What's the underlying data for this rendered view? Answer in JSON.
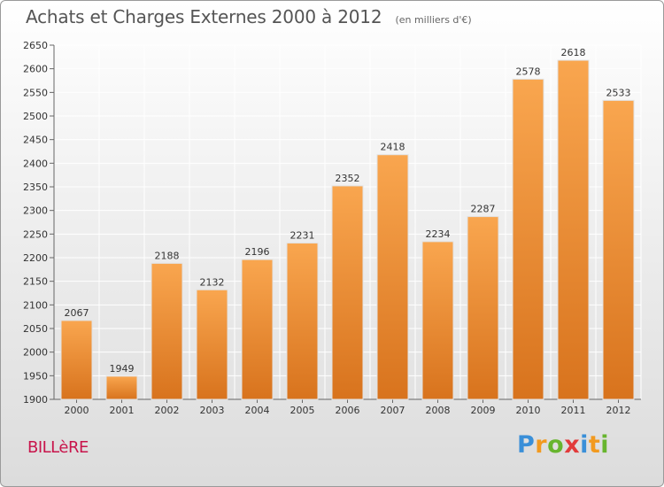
{
  "header": {
    "title": "Achats et Charges Externes 2000 à 2012",
    "subtitle": "(en milliers d'€)"
  },
  "footer": {
    "city": "BILLèRE",
    "logo_text": "Proxiti",
    "logo_letters": [
      {
        "char": "P",
        "color": "#3a8fd8"
      },
      {
        "char": "r",
        "color": "#f29a1f"
      },
      {
        "char": "o",
        "color": "#67b52e"
      },
      {
        "char": "x",
        "color": "#e23b3b"
      },
      {
        "char": "i",
        "color": "#3a8fd8"
      },
      {
        "char": "t",
        "color": "#f29a1f"
      },
      {
        "char": "i",
        "color": "#67b52e"
      }
    ]
  },
  "colors": {
    "bar_top": "#f9a64f",
    "bar_bottom": "#d8731d",
    "grid": "#ffffff",
    "axis_text": "#333333"
  },
  "chart_data": {
    "type": "bar",
    "title": "Achats et Charges Externes 2000 à 2012",
    "subtitle": "(en milliers d'€)",
    "categories": [
      "2000",
      "2001",
      "2002",
      "2003",
      "2004",
      "2005",
      "2006",
      "2007",
      "2008",
      "2009",
      "2010",
      "2011",
      "2012"
    ],
    "values": [
      2067,
      1949,
      2188,
      2132,
      2196,
      2231,
      2352,
      2418,
      2234,
      2287,
      2578,
      2618,
      2533
    ],
    "ylim": [
      1900,
      2650
    ],
    "yticks": [
      1900,
      1950,
      2000,
      2050,
      2100,
      2150,
      2200,
      2250,
      2300,
      2350,
      2400,
      2450,
      2500,
      2550,
      2600,
      2650
    ],
    "grid": true,
    "xlabel": "",
    "ylabel": ""
  }
}
